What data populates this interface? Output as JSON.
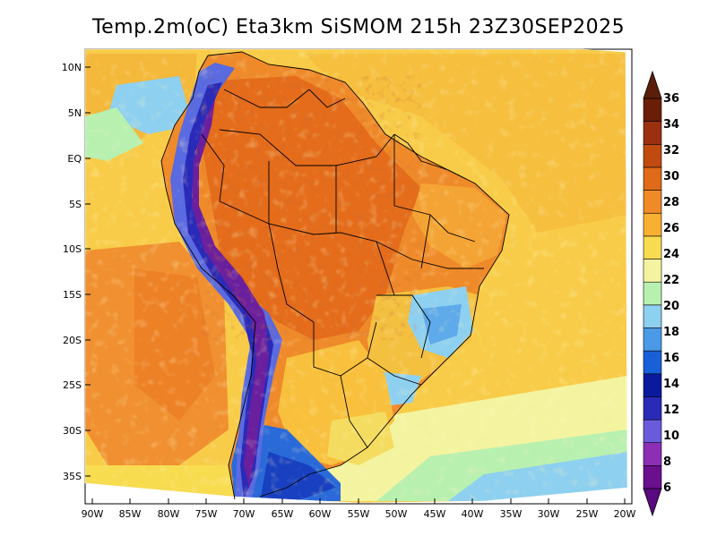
{
  "title": "Temp.2m(oC) Eta3km SiSMOM 215h 23Z30SEP2025",
  "lat_labels": [
    "10N",
    "5N",
    "EQ",
    "5S",
    "10S",
    "15S",
    "20S",
    "25S",
    "30S",
    "35S"
  ],
  "lon_labels": [
    "90W",
    "85W",
    "80W",
    "75W",
    "70W",
    "65W",
    "60W",
    "55W",
    "50W",
    "45W",
    "40W",
    "35W",
    "30W",
    "25W",
    "20W"
  ],
  "colorbar": {
    "levels": [
      "6",
      "8",
      "10",
      "12",
      "14",
      "16",
      "18",
      "20",
      "22",
      "24",
      "26",
      "28",
      "30",
      "32",
      "34",
      "36"
    ],
    "colors": [
      "#6a0f8e",
      "#8c2fb4",
      "#6a5bdc",
      "#2a2ab8",
      "#0a1a9e",
      "#1860d8",
      "#4a9ae8",
      "#8ed0f0",
      "#b8f0b0",
      "#f4f4a0",
      "#f8dc50",
      "#f8b030",
      "#f08a28",
      "#e06a18",
      "#c04a10",
      "#9a3010",
      "#6a1e08"
    ],
    "low_cap_color": "#5a0a80",
    "high_cap_color": "#5a1e0a"
  }
}
